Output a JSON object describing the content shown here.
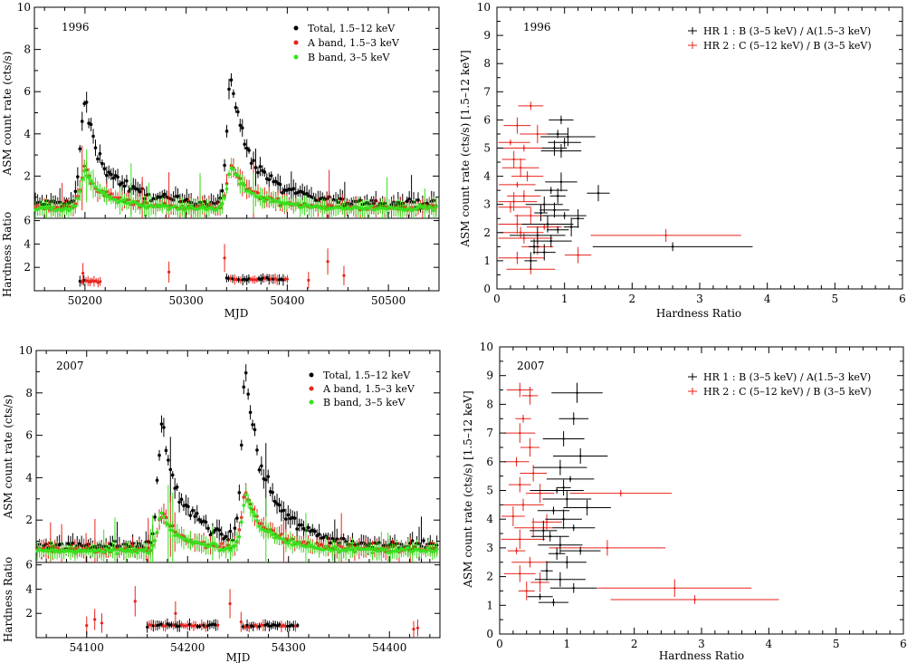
{
  "chart_data": [
    {
      "type": "scatter",
      "panel": "top-left",
      "year_label": "1996",
      "xlabel": "MJD",
      "ylabel_top": "ASM count rate (cts/s)",
      "ylabel_bottom": "Hardness Ratio",
      "xlim": [
        50150,
        50550
      ],
      "ylim_top": [
        0,
        10
      ],
      "ylim_bottom": [
        0,
        6.2
      ],
      "xticks": [
        50200,
        50300,
        50400,
        50500
      ],
      "yticks_top": [
        2,
        4,
        6,
        8,
        10
      ],
      "yticks_bottom": [
        2,
        4,
        6
      ],
      "legend": [
        "Total, 1.5–12 keV",
        "A band, 1.5–3 keV",
        "B band, 3–5 keV"
      ],
      "colors": [
        "#000000",
        "#e8231b",
        "#35e21c"
      ],
      "outbursts": [
        {
          "mjd": 50200,
          "peak_total": 5.4,
          "peak_a": 2.3,
          "peak_b": 2.2
        },
        {
          "mjd": 50345,
          "peak_total": 6.5,
          "peak_a": 2.5,
          "peak_b": 2.4
        }
      ],
      "baseline": {
        "total": 0.7,
        "a": 0.5,
        "b": 0.45
      },
      "hardness_segments": [
        [
          50195,
          50215,
          0.8
        ],
        [
          50340,
          50400,
          1.0
        ]
      ],
      "hardness_outliers": [
        [
          50198,
          1.5
        ],
        [
          50283,
          1.6
        ],
        [
          50338,
          2.8
        ],
        [
          50421,
          0.9
        ],
        [
          50440,
          2.5
        ],
        [
          50456,
          1.3
        ]
      ]
    },
    {
      "type": "scatter",
      "panel": "top-right",
      "year_label": "1996",
      "xlabel": "Hardness Ratio",
      "ylabel": "ASM count rate (cts/s) [1.5–12 keV]",
      "xlim": [
        0,
        6
      ],
      "ylim": [
        0,
        10
      ],
      "xticks": [
        0,
        1,
        2,
        3,
        4,
        5,
        6
      ],
      "yticks": [
        0,
        1,
        2,
        3,
        4,
        5,
        6,
        7,
        8,
        9,
        10
      ],
      "legend": [
        "HR 1 : B (3–5 keV) / A(1.5–3 keV)",
        "HR 2 : C (5–12 keV) / B (3–5 keV)"
      ],
      "colors": [
        "#000000",
        "#e8231b"
      ],
      "hr1_points": [
        [
          0.95,
          6.0
        ],
        [
          0.9,
          5.5
        ],
        [
          1.0,
          5.2
        ],
        [
          0.85,
          5.0
        ],
        [
          1.05,
          5.4
        ],
        [
          0.95,
          4.9
        ],
        [
          0.8,
          3.5
        ],
        [
          0.9,
          3.3
        ],
        [
          0.7,
          3.0
        ],
        [
          0.85,
          2.8
        ],
        [
          1.0,
          2.6
        ],
        [
          1.2,
          2.5
        ],
        [
          0.75,
          2.3
        ],
        [
          0.9,
          2.1
        ],
        [
          0.6,
          1.9
        ],
        [
          0.8,
          1.7
        ],
        [
          1.5,
          3.4
        ],
        [
          2.6,
          1.5
        ],
        [
          0.7,
          1.3
        ],
        [
          0.5,
          1.0
        ],
        [
          1.1,
          2.2
        ],
        [
          0.65,
          2.7
        ],
        [
          0.95,
          3.8
        ],
        [
          0.55,
          1.5
        ]
      ],
      "hr2_points": [
        [
          0.5,
          6.5
        ],
        [
          0.3,
          5.8
        ],
        [
          0.2,
          5.2
        ],
        [
          0.4,
          5.0
        ],
        [
          0.25,
          4.6
        ],
        [
          0.6,
          5.5
        ],
        [
          0.35,
          4.3
        ],
        [
          0.3,
          3.7
        ],
        [
          0.4,
          3.3
        ],
        [
          0.2,
          2.9
        ],
        [
          0.5,
          2.6
        ],
        [
          0.3,
          2.3
        ],
        [
          0.35,
          2.0
        ],
        [
          0.4,
          1.8
        ],
        [
          2.5,
          1.9
        ],
        [
          0.6,
          1.5
        ],
        [
          1.2,
          1.2
        ],
        [
          0.3,
          1.1
        ],
        [
          0.5,
          0.7
        ],
        [
          0.25,
          3.1
        ],
        [
          0.7,
          2.2
        ],
        [
          0.45,
          4.0
        ]
      ]
    },
    {
      "type": "scatter",
      "panel": "bottom-left",
      "year_label": "2007",
      "xlabel": "MJD",
      "ylabel_top": "ASM count rate (cts/s)",
      "ylabel_bottom": "Hardness Ratio",
      "xlim": [
        54050,
        54450
      ],
      "ylim_top": [
        0,
        10
      ],
      "ylim_bottom": [
        0,
        6.2
      ],
      "xticks": [
        54100,
        54200,
        54300,
        54400
      ],
      "yticks_top": [
        2,
        4,
        6,
        8,
        10
      ],
      "yticks_bottom": [
        2,
        4,
        6
      ],
      "legend": [
        "Total, 1.5–12 keV",
        "A band, 1.5–3 keV",
        "B band, 3–5 keV"
      ],
      "colors": [
        "#000000",
        "#e8231b",
        "#35e21c"
      ],
      "outbursts": [
        {
          "mjd": 54175,
          "peak_total": 6.3,
          "peak_a": 2.3,
          "peak_b": 2.2
        },
        {
          "mjd": 54258,
          "peak_total": 8.6,
          "peak_a": 3.2,
          "peak_b": 3.0
        }
      ],
      "baseline": {
        "total": 0.8,
        "a": 0.6,
        "b": 0.55
      },
      "hardness_segments": [
        [
          54160,
          54230,
          1.0
        ],
        [
          54255,
          54310,
          1.0
        ]
      ],
      "hardness_outliers": [
        [
          54100,
          1.0
        ],
        [
          54108,
          1.5
        ],
        [
          54115,
          1.2
        ],
        [
          54148,
          3.0
        ],
        [
          54188,
          2.0
        ],
        [
          54242,
          2.8
        ],
        [
          54253,
          1.3
        ],
        [
          54424,
          0.7
        ],
        [
          54428,
          0.8
        ]
      ]
    },
    {
      "type": "scatter",
      "panel": "bottom-right",
      "year_label": "2007",
      "xlabel": "Hardness Ratio",
      "ylabel": "ASM count rate (cts/s) [1.5–12 keV]",
      "xlim": [
        0,
        6
      ],
      "ylim": [
        0,
        10
      ],
      "xticks": [
        0,
        1,
        2,
        3,
        4,
        5,
        6
      ],
      "yticks": [
        0,
        1,
        2,
        3,
        4,
        5,
        6,
        7,
        8,
        9,
        10
      ],
      "legend": [
        "HR 1 : B (3–5 keV) / A(1.5–3 keV)",
        "HR 2 : C (5–12 keV) / B (3–5 keV)"
      ],
      "colors": [
        "#000000",
        "#e8231b"
      ],
      "hr1_points": [
        [
          1.15,
          8.4
        ],
        [
          1.1,
          7.5
        ],
        [
          0.95,
          6.8
        ],
        [
          1.2,
          6.2
        ],
        [
          0.9,
          5.8
        ],
        [
          1.05,
          5.4
        ],
        [
          0.85,
          5.0
        ],
        [
          1.0,
          4.7
        ],
        [
          0.8,
          4.3
        ],
        [
          0.95,
          4.0
        ],
        [
          1.1,
          3.7
        ],
        [
          0.75,
          3.4
        ],
        [
          0.9,
          3.1
        ],
        [
          0.85,
          2.8
        ],
        [
          1.0,
          2.5
        ],
        [
          0.7,
          2.2
        ],
        [
          0.9,
          1.9
        ],
        [
          1.1,
          1.6
        ],
        [
          0.6,
          1.3
        ],
        [
          0.8,
          1.1
        ],
        [
          1.3,
          4.4
        ],
        [
          0.65,
          3.6
        ],
        [
          1.2,
          2.9
        ],
        [
          0.95,
          5.1
        ]
      ],
      "hr2_points": [
        [
          0.3,
          8.5
        ],
        [
          0.45,
          8.3
        ],
        [
          0.35,
          7.5
        ],
        [
          0.3,
          7.0
        ],
        [
          0.45,
          6.5
        ],
        [
          0.25,
          6.0
        ],
        [
          0.5,
          5.6
        ],
        [
          0.3,
          5.2
        ],
        [
          0.6,
          4.9
        ],
        [
          0.35,
          4.5
        ],
        [
          0.2,
          4.1
        ],
        [
          0.5,
          3.7
        ],
        [
          0.3,
          3.3
        ],
        [
          0.25,
          2.9
        ],
        [
          0.45,
          2.5
        ],
        [
          0.3,
          2.1
        ],
        [
          0.6,
          1.8
        ],
        [
          2.6,
          1.6
        ],
        [
          2.9,
          1.2
        ],
        [
          0.4,
          1.5
        ],
        [
          1.6,
          3.0
        ],
        [
          1.8,
          4.9
        ],
        [
          0.7,
          3.9
        ]
      ]
    }
  ]
}
